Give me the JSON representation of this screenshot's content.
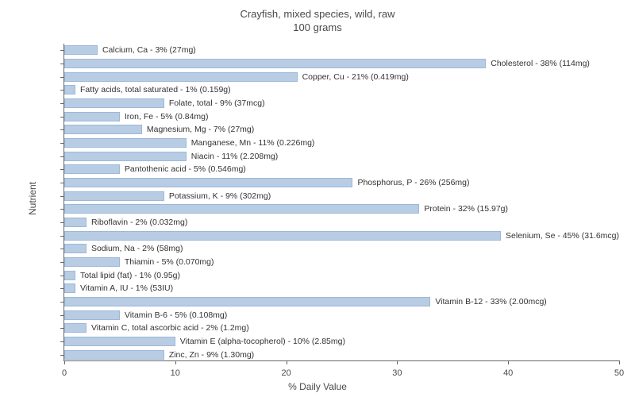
{
  "title_line1": "Crayfish, mixed species, wild, raw",
  "title_line2": "100 grams",
  "y_axis_label": "Nutrient",
  "x_axis_label": "% Daily Value",
  "x_max": 50,
  "x_ticks": [
    0,
    10,
    20,
    30,
    40,
    50
  ],
  "bar_color": "#b8cce4",
  "bar_border_color": "#9db8d8",
  "background_color": "#ffffff",
  "axis_color": "#666666",
  "text_color": "#4a4a4a",
  "label_color": "#333333",
  "title_fontsize": 13,
  "axis_label_fontsize": 12,
  "tick_fontsize": 11,
  "bar_label_fontsize": 10.5,
  "nutrients": [
    {
      "label": "Calcium, Ca - 3% (27mg)",
      "value": 3
    },
    {
      "label": "Cholesterol - 38% (114mg)",
      "value": 38
    },
    {
      "label": "Copper, Cu - 21% (0.419mg)",
      "value": 21
    },
    {
      "label": "Fatty acids, total saturated - 1% (0.159g)",
      "value": 1
    },
    {
      "label": "Folate, total - 9% (37mcg)",
      "value": 9
    },
    {
      "label": "Iron, Fe - 5% (0.84mg)",
      "value": 5
    },
    {
      "label": "Magnesium, Mg - 7% (27mg)",
      "value": 7
    },
    {
      "label": "Manganese, Mn - 11% (0.226mg)",
      "value": 11
    },
    {
      "label": "Niacin - 11% (2.208mg)",
      "value": 11
    },
    {
      "label": "Pantothenic acid - 5% (0.546mg)",
      "value": 5
    },
    {
      "label": "Phosphorus, P - 26% (256mg)",
      "value": 26
    },
    {
      "label": "Potassium, K - 9% (302mg)",
      "value": 9
    },
    {
      "label": "Protein - 32% (15.97g)",
      "value": 32
    },
    {
      "label": "Riboflavin - 2% (0.032mg)",
      "value": 2
    },
    {
      "label": "Selenium, Se - 45% (31.6mcg)",
      "value": 45
    },
    {
      "label": "Sodium, Na - 2% (58mg)",
      "value": 2
    },
    {
      "label": "Thiamin - 5% (0.070mg)",
      "value": 5
    },
    {
      "label": "Total lipid (fat) - 1% (0.95g)",
      "value": 1
    },
    {
      "label": "Vitamin A, IU - 1% (53IU)",
      "value": 1
    },
    {
      "label": "Vitamin B-12 - 33% (2.00mcg)",
      "value": 33
    },
    {
      "label": "Vitamin B-6 - 5% (0.108mg)",
      "value": 5
    },
    {
      "label": "Vitamin C, total ascorbic acid - 2% (1.2mg)",
      "value": 2
    },
    {
      "label": "Vitamin E (alpha-tocopherol) - 10% (2.85mg)",
      "value": 10
    },
    {
      "label": "Zinc, Zn - 9% (1.30mg)",
      "value": 9
    }
  ]
}
